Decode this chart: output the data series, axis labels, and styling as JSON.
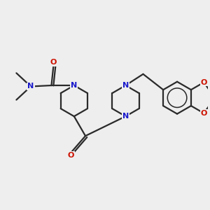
{
  "bg_color": "#eeeeee",
  "bond_color": "#2a2a2a",
  "N_color": "#1a1acc",
  "O_color": "#cc1100",
  "line_width": 1.6,
  "figsize": [
    3.0,
    3.0
  ],
  "dpi": 100,
  "xlim": [
    0,
    10
  ],
  "ylim": [
    0,
    10
  ]
}
